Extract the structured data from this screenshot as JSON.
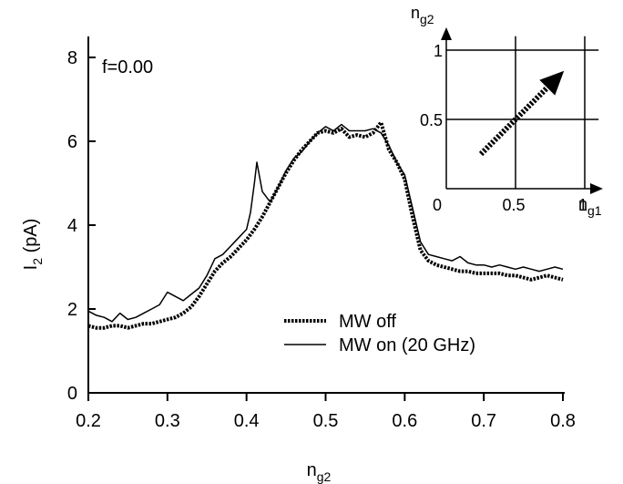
{
  "chart_data": [
    {
      "type": "line",
      "annotation": "f=0.00",
      "xlabel": "n",
      "xlabel_sub": "g2",
      "ylabel": "I",
      "ylabel_sub": "2",
      "ylabel_unit": " (pA)",
      "xlim": [
        0.2,
        0.8
      ],
      "ylim": [
        0,
        8.5
      ],
      "xticks": [
        "0.2",
        "0.3",
        "0.4",
        "0.5",
        "0.6",
        "0.7",
        "0.8"
      ],
      "yticks": [
        "0",
        "2",
        "4",
        "6",
        "8"
      ],
      "grid": false,
      "legend_position": "center-right",
      "series": [
        {
          "name": "MW off",
          "style": "dotted",
          "x": [
            0.2,
            0.21,
            0.22,
            0.23,
            0.24,
            0.25,
            0.26,
            0.27,
            0.28,
            0.29,
            0.3,
            0.31,
            0.32,
            0.33,
            0.34,
            0.35,
            0.36,
            0.37,
            0.38,
            0.39,
            0.4,
            0.41,
            0.42,
            0.43,
            0.44,
            0.45,
            0.46,
            0.47,
            0.48,
            0.49,
            0.5,
            0.51,
            0.52,
            0.53,
            0.54,
            0.55,
            0.56,
            0.57,
            0.58,
            0.59,
            0.6,
            0.61,
            0.62,
            0.63,
            0.64,
            0.65,
            0.66,
            0.67,
            0.68,
            0.69,
            0.7,
            0.71,
            0.72,
            0.73,
            0.74,
            0.75,
            0.76,
            0.77,
            0.78,
            0.79,
            0.8
          ],
          "values": [
            1.6,
            1.55,
            1.55,
            1.6,
            1.6,
            1.55,
            1.6,
            1.65,
            1.65,
            1.7,
            1.75,
            1.8,
            1.9,
            2.05,
            2.3,
            2.6,
            2.9,
            3.1,
            3.25,
            3.45,
            3.65,
            3.9,
            4.2,
            4.55,
            4.9,
            5.25,
            5.55,
            5.8,
            6.0,
            6.2,
            6.25,
            6.2,
            6.3,
            6.1,
            6.15,
            6.1,
            6.2,
            6.45,
            5.8,
            5.5,
            5.1,
            4.2,
            3.4,
            3.15,
            3.05,
            3.0,
            2.95,
            2.9,
            2.9,
            2.85,
            2.85,
            2.85,
            2.85,
            2.8,
            2.8,
            2.75,
            2.7,
            2.75,
            2.8,
            2.75,
            2.7
          ]
        },
        {
          "name": "MW on (20 GHz)",
          "style": "solid",
          "x": [
            0.2,
            0.21,
            0.22,
            0.23,
            0.24,
            0.25,
            0.26,
            0.27,
            0.28,
            0.29,
            0.3,
            0.31,
            0.32,
            0.33,
            0.34,
            0.35,
            0.36,
            0.37,
            0.38,
            0.39,
            0.4,
            0.405,
            0.41,
            0.413,
            0.42,
            0.43,
            0.44,
            0.45,
            0.46,
            0.47,
            0.48,
            0.49,
            0.5,
            0.51,
            0.52,
            0.53,
            0.54,
            0.55,
            0.56,
            0.57,
            0.58,
            0.59,
            0.6,
            0.61,
            0.62,
            0.63,
            0.64,
            0.65,
            0.66,
            0.67,
            0.68,
            0.69,
            0.7,
            0.71,
            0.72,
            0.73,
            0.74,
            0.75,
            0.76,
            0.77,
            0.78,
            0.79,
            0.8
          ],
          "values": [
            1.95,
            1.85,
            1.8,
            1.7,
            1.9,
            1.75,
            1.8,
            1.9,
            2.0,
            2.1,
            2.4,
            2.3,
            2.2,
            2.35,
            2.5,
            2.8,
            3.2,
            3.3,
            3.5,
            3.7,
            3.9,
            4.3,
            5.0,
            5.5,
            4.8,
            4.55,
            4.9,
            5.3,
            5.6,
            5.75,
            6.0,
            6.2,
            6.35,
            6.25,
            6.4,
            6.25,
            6.25,
            6.25,
            6.3,
            6.2,
            5.9,
            5.5,
            5.2,
            4.4,
            3.6,
            3.3,
            3.25,
            3.2,
            3.15,
            3.25,
            3.1,
            3.05,
            3.05,
            3.0,
            3.05,
            3.0,
            2.95,
            3.0,
            2.95,
            2.9,
            2.95,
            3.0,
            2.95
          ]
        }
      ]
    },
    {
      "type": "line",
      "inset": true,
      "xlabel": "n",
      "xlabel_sub": "g1",
      "ylabel": "n",
      "ylabel_sub": "g2",
      "xlim": [
        0,
        1.1
      ],
      "ylim": [
        0,
        1.1
      ],
      "xticks": [
        "0",
        "0.5",
        "1"
      ],
      "yticks": [
        "0.5",
        "1"
      ],
      "grid_lines": [
        0.5,
        1
      ],
      "arrow": {
        "from": [
          0.25,
          0.25
        ],
        "to": [
          0.85,
          0.85
        ],
        "style": "dotted"
      }
    }
  ]
}
